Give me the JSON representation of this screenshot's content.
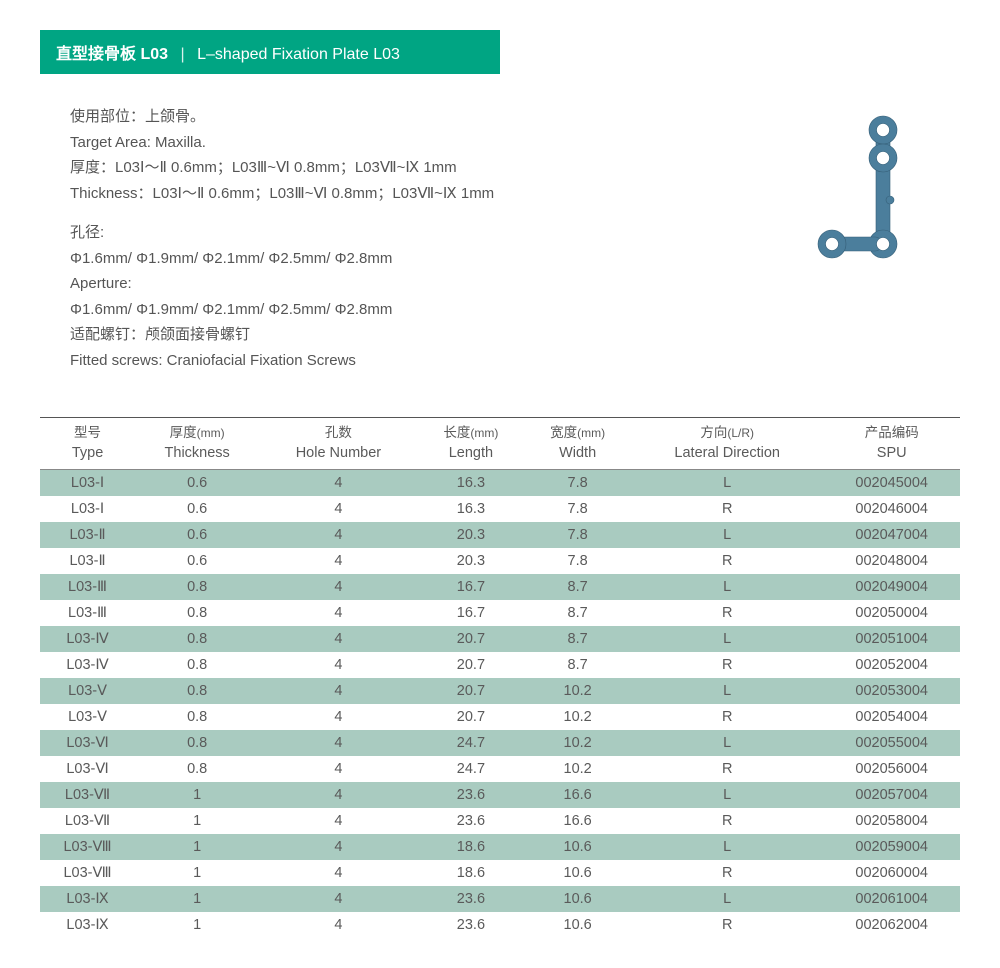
{
  "title": {
    "cn": "直型接骨板 L03",
    "sep": "|",
    "en": "L–shaped Fixation Plate L03",
    "bar_color": "#00a583",
    "text_color": "#ffffff"
  },
  "info": {
    "target_cn": "使用部位：上颌骨。",
    "target_en": "Target Area: Maxilla.",
    "thickness_cn": "厚度：L03Ⅰ～Ⅱ 0.6mm；L03Ⅲ~Ⅵ 0.8mm；L03Ⅶ~Ⅸ 1mm",
    "thickness_en": "Thickness：L03Ⅰ～Ⅱ 0.6mm；L03Ⅲ~Ⅵ 0.8mm；L03Ⅶ~Ⅸ 1mm",
    "aperture_label_cn": "孔径:",
    "aperture_values_cn": "Φ1.6mm/ Φ1.9mm/ Φ2.1mm/ Φ2.5mm/ Φ2.8mm",
    "aperture_label_en": "Aperture:",
    "aperture_values_en": "Φ1.6mm/ Φ1.9mm/ Φ2.1mm/ Φ2.5mm/ Φ2.8mm",
    "screws_cn": "适配螺钉：颅颌面接骨螺钉",
    "screws_en": "Fitted screws: Craniofacial Fixation Screws"
  },
  "product_image": {
    "fill_color": "#4b7e9c",
    "highlight_color": "#7aa8c2"
  },
  "table": {
    "row_odd_bg": "#a9cbc0",
    "row_even_bg": "#ffffff",
    "header_border_color": "#555555",
    "text_color": "#5a5a5a",
    "columns": [
      {
        "cn": "型号",
        "en": "Type",
        "unit": ""
      },
      {
        "cn": "厚度",
        "en": "Thickness",
        "unit": "(mm)"
      },
      {
        "cn": "孔数",
        "en": "Hole Number",
        "unit": ""
      },
      {
        "cn": "长度",
        "en": "Length",
        "unit": "(mm)"
      },
      {
        "cn": "宽度",
        "en": "Width",
        "unit": "(mm)"
      },
      {
        "cn": "方向",
        "en": "Lateral Direction",
        "unit": "(L/R)"
      },
      {
        "cn": "产品编码",
        "en": "SPU",
        "unit": ""
      }
    ],
    "rows": [
      [
        "L03-Ⅰ",
        "0.6",
        "4",
        "16.3",
        "7.8",
        "L",
        "002045004"
      ],
      [
        "L03-Ⅰ",
        "0.6",
        "4",
        "16.3",
        "7.8",
        "R",
        "002046004"
      ],
      [
        "L03-Ⅱ",
        "0.6",
        "4",
        "20.3",
        "7.8",
        "L",
        "002047004"
      ],
      [
        "L03-Ⅱ",
        "0.6",
        "4",
        "20.3",
        "7.8",
        "R",
        "002048004"
      ],
      [
        "L03-Ⅲ",
        "0.8",
        "4",
        "16.7",
        "8.7",
        "L",
        "002049004"
      ],
      [
        "L03-Ⅲ",
        "0.8",
        "4",
        "16.7",
        "8.7",
        "R",
        "002050004"
      ],
      [
        "L03-Ⅳ",
        "0.8",
        "4",
        "20.7",
        "8.7",
        "L",
        "002051004"
      ],
      [
        "L03-Ⅳ",
        "0.8",
        "4",
        "20.7",
        "8.7",
        "R",
        "002052004"
      ],
      [
        "L03-Ⅴ",
        "0.8",
        "4",
        "20.7",
        "10.2",
        "L",
        "002053004"
      ],
      [
        "L03-Ⅴ",
        "0.8",
        "4",
        "20.7",
        "10.2",
        "R",
        "002054004"
      ],
      [
        "L03-Ⅵ",
        "0.8",
        "4",
        "24.7",
        "10.2",
        "L",
        "002055004"
      ],
      [
        "L03-Ⅵ",
        "0.8",
        "4",
        "24.7",
        "10.2",
        "R",
        "002056004"
      ],
      [
        "L03-Ⅶ",
        "1",
        "4",
        "23.6",
        "16.6",
        "L",
        "002057004"
      ],
      [
        "L03-Ⅶ",
        "1",
        "4",
        "23.6",
        "16.6",
        "R",
        "002058004"
      ],
      [
        "L03-Ⅷ",
        "1",
        "4",
        "18.6",
        "10.6",
        "L",
        "002059004"
      ],
      [
        "L03-Ⅷ",
        "1",
        "4",
        "18.6",
        "10.6",
        "R",
        "002060004"
      ],
      [
        "L03-Ⅸ",
        "1",
        "4",
        "23.6",
        "10.6",
        "L",
        "002061004"
      ],
      [
        "L03-Ⅸ",
        "1",
        "4",
        "23.6",
        "10.6",
        "R",
        "002062004"
      ]
    ]
  }
}
